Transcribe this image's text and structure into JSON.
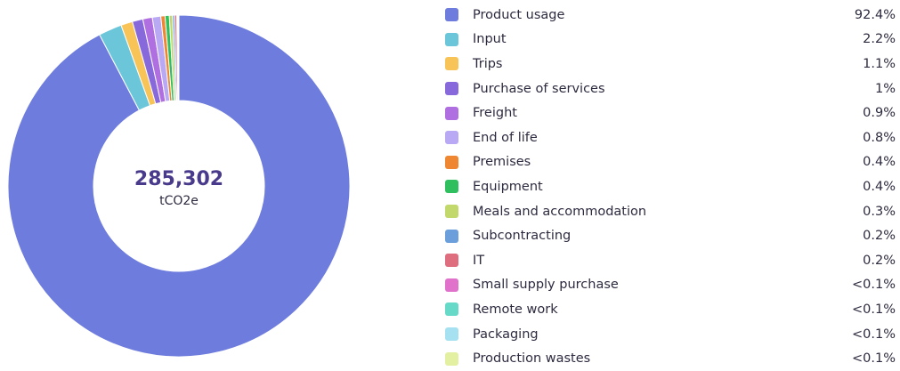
{
  "chart_data": {
    "type": "pie",
    "variant": "donut",
    "center_total": "285,302",
    "center_unit": "tCO2e",
    "legend_position": "right",
    "slices": [
      {
        "label": "Product usage",
        "value": 92.4,
        "percent_label": "92.4%",
        "color": "#6d7cdd"
      },
      {
        "label": "Input",
        "value": 2.2,
        "percent_label": "2.2%",
        "color": "#6cc6d9"
      },
      {
        "label": "Trips",
        "value": 1.1,
        "percent_label": "1.1%",
        "color": "#f8c457"
      },
      {
        "label": "Purchase of services",
        "value": 1.0,
        "percent_label": "1%",
        "color": "#8769dc"
      },
      {
        "label": "Freight",
        "value": 0.9,
        "percent_label": "0.9%",
        "color": "#b06fe0"
      },
      {
        "label": "End of life",
        "value": 0.8,
        "percent_label": "0.8%",
        "color": "#b9a8f3"
      },
      {
        "label": "Premises",
        "value": 0.4,
        "percent_label": "0.4%",
        "color": "#ef8632"
      },
      {
        "label": "Equipment",
        "value": 0.4,
        "percent_label": "0.4%",
        "color": "#2fbf5f"
      },
      {
        "label": "Meals and accommodation",
        "value": 0.3,
        "percent_label": "0.3%",
        "color": "#c2d86a"
      },
      {
        "label": "Subcontracting",
        "value": 0.2,
        "percent_label": "0.2%",
        "color": "#6b9fdb"
      },
      {
        "label": "IT",
        "value": 0.2,
        "percent_label": "0.2%",
        "color": "#de6e7e"
      },
      {
        "label": "Small supply purchase",
        "value": 0.05,
        "percent_label": "<0.1%",
        "color": "#e072cc"
      },
      {
        "label": "Remote work",
        "value": 0.05,
        "percent_label": "<0.1%",
        "color": "#67d9c9"
      },
      {
        "label": "Packaging",
        "value": 0.05,
        "percent_label": "<0.1%",
        "color": "#a6e1f2"
      },
      {
        "label": "Production wastes",
        "value": 0.05,
        "percent_label": "<0.1%",
        "color": "#e3f0a2"
      }
    ]
  }
}
